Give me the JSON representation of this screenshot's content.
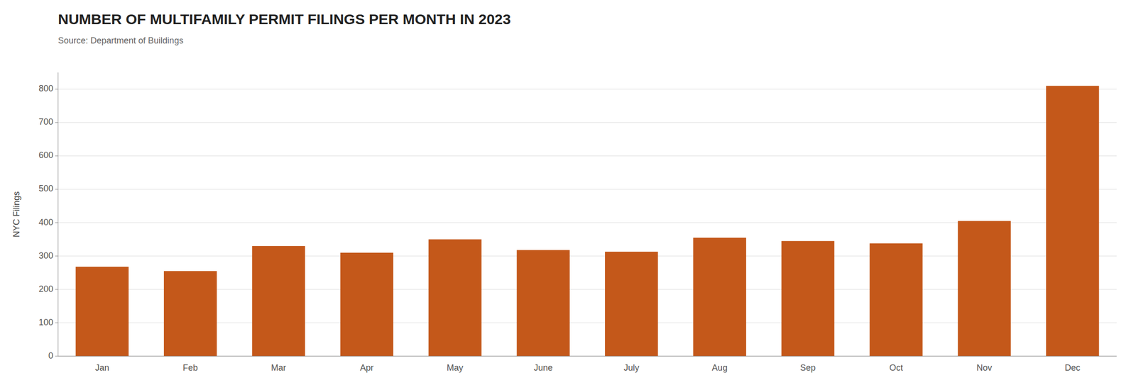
{
  "chart_data": {
    "type": "bar",
    "title": "NUMBER OF MULTIFAMILY PERMIT FILINGS PER MONTH IN 2023",
    "subtitle": "Source: Department of Buildings",
    "ylabel": "NYC Filings",
    "categories": [
      "Jan",
      "Feb",
      "Mar",
      "Apr",
      "May",
      "June",
      "July",
      "Aug",
      "Sep",
      "Oct",
      "Nov",
      "Dec"
    ],
    "values": [
      268,
      255,
      330,
      310,
      350,
      318,
      313,
      355,
      345,
      338,
      405,
      810
    ],
    "color": "#C4581A",
    "ylim": [
      0,
      850
    ],
    "yticks": [
      0,
      100,
      200,
      300,
      400,
      500,
      600,
      700,
      800
    ],
    "grid": true
  }
}
